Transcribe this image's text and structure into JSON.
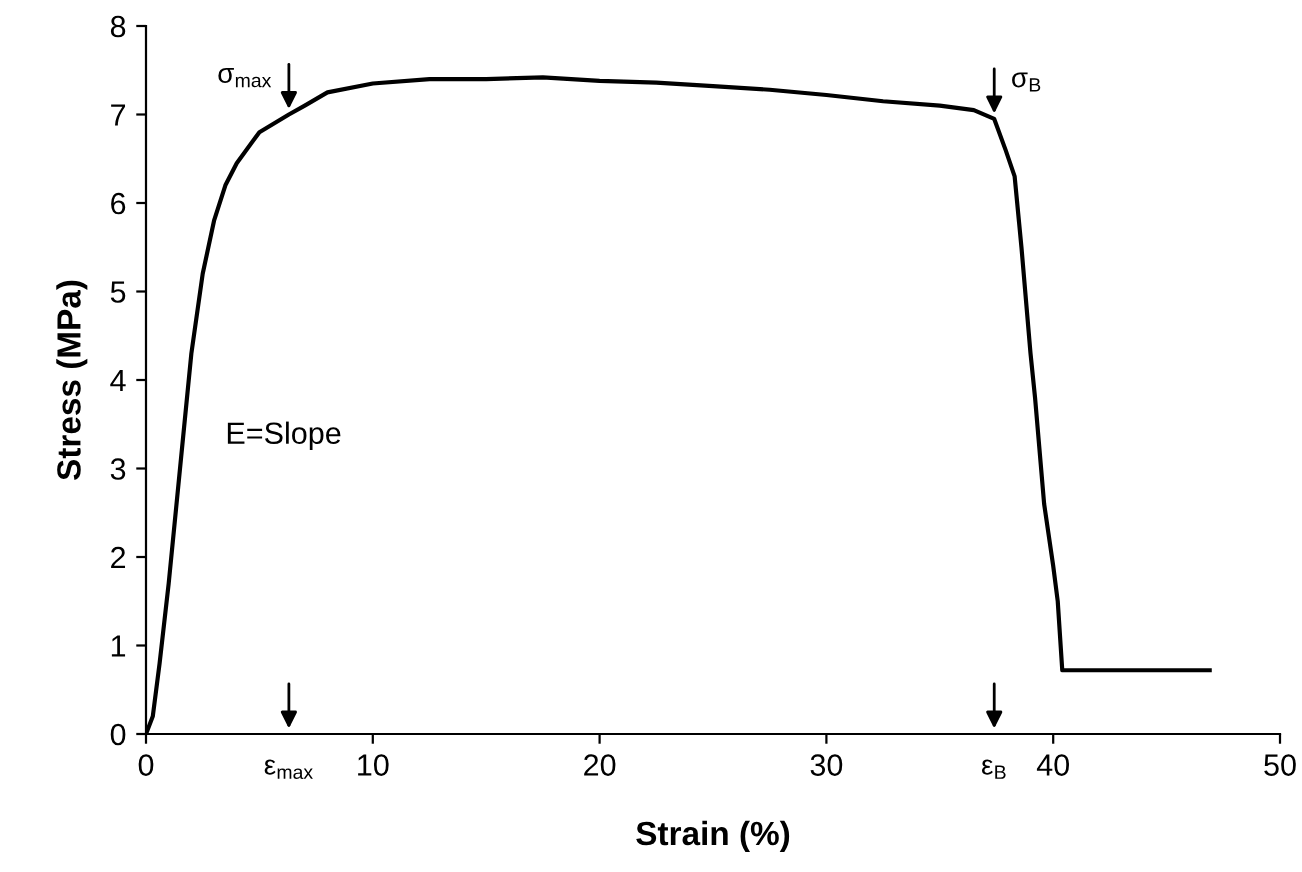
{
  "chart_data": {
    "type": "line",
    "xlabel": "Strain (%)",
    "ylabel": "Stress (MPa)",
    "x": [
      0,
      0.3,
      0.6,
      1.0,
      1.5,
      2.0,
      2.5,
      3.0,
      3.5,
      4.0,
      5.0,
      6.3,
      7.0,
      8.0,
      10.0,
      12.5,
      15.0,
      17.5,
      20.0,
      22.5,
      25.0,
      27.5,
      30.0,
      32.5,
      35.0,
      36.5,
      37.4,
      37.9,
      38.3,
      38.6,
      39.0,
      39.2,
      39.6,
      40.0,
      40.2,
      40.4,
      42.0,
      44.0,
      46.9
    ],
    "series": [
      {
        "color": "#000000",
        "values": [
          0,
          0.2,
          0.8,
          1.7,
          3.0,
          4.3,
          5.2,
          5.8,
          6.2,
          6.45,
          6.8,
          7.0,
          7.1,
          7.25,
          7.35,
          7.4,
          7.4,
          7.42,
          7.38,
          7.36,
          7.32,
          7.28,
          7.22,
          7.15,
          7.1,
          7.05,
          6.95,
          6.6,
          6.3,
          5.5,
          4.3,
          3.8,
          2.6,
          1.9,
          1.5,
          0.72,
          0.72,
          0.72,
          0.72
        ]
      }
    ],
    "xlim": [
      0,
      50
    ],
    "ylim": [
      0,
      8
    ],
    "xticks": [
      0,
      10,
      20,
      30,
      40,
      50
    ],
    "yticks": [
      0,
      1,
      2,
      3,
      4,
      5,
      6,
      7,
      8
    ],
    "annotations": [
      {
        "text": "σ$_{max}$",
        "x": 6.3,
        "y": 7.0
      },
      {
        "text": "σ$_{B}$",
        "x": 37.4,
        "y": 6.95
      },
      "ε$_{max}$",
      "ε$_{B}$",
      "E=Slope"
    ],
    "grid": false,
    "legend": false,
    "marker": "none",
    "line_style": "solid"
  }
}
